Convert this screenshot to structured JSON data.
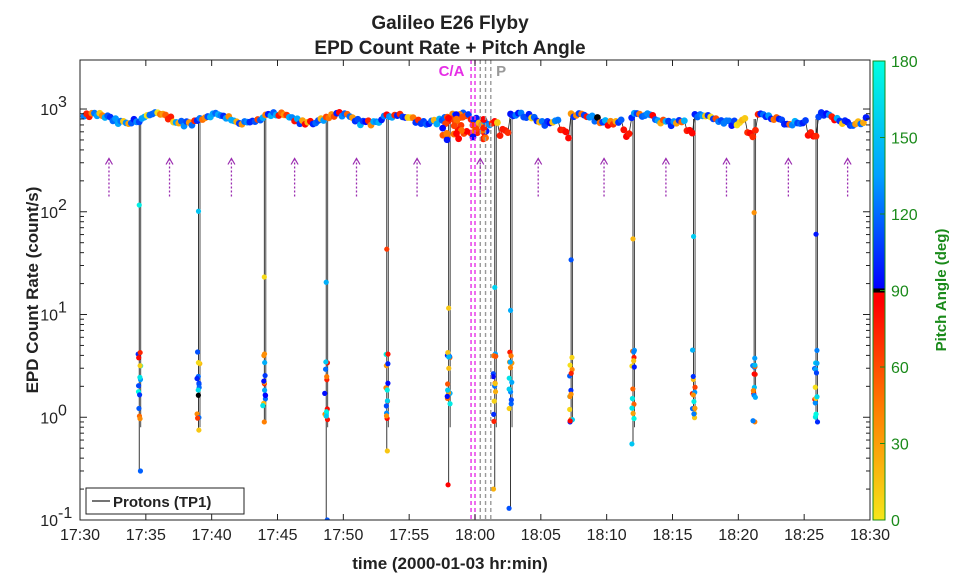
{
  "chart_data": {
    "type": "scatter",
    "title": "Galileo E26 Flyby",
    "subtitle": "EPD Count Rate + Pitch Angle",
    "xlabel": "time (2000-01-03 hr:min)",
    "ylabel": "EPD Count Rate (count/s)",
    "y_scale": "log",
    "ylim": [
      0.1,
      3000
    ],
    "xlim": [
      "17:30",
      "18:30"
    ],
    "x_ticks": [
      "17:30",
      "17:35",
      "17:40",
      "17:45",
      "17:50",
      "17:55",
      "18:00",
      "18:05",
      "18:10",
      "18:15",
      "18:20",
      "18:25",
      "18:30"
    ],
    "y_ticks": [
      {
        "value": 0.1,
        "base": "10",
        "exp": "-1"
      },
      {
        "value": 1,
        "base": "10",
        "exp": "0"
      },
      {
        "value": 10,
        "base": "10",
        "exp": "1"
      },
      {
        "value": 100,
        "base": "10",
        "exp": "2"
      },
      {
        "value": 1000,
        "base": "10",
        "exp": "3"
      }
    ],
    "colorbar": {
      "label": "Pitch Angle (deg)",
      "range": [
        0,
        180
      ],
      "ticks": [
        "0",
        "30",
        "60",
        "90",
        "120",
        "150",
        "180"
      ],
      "colors": {
        "0": "#f5e61a",
        "45": "#ff7a00",
        "85": "#ff0000",
        "90": "#000000",
        "95": "#0000ff",
        "135": "#00a0ff",
        "180": "#00ffe0"
      }
    },
    "legend": {
      "entries": [
        "Protons (TP1)"
      ],
      "location": "bottom-left"
    },
    "annotations": [
      {
        "text": "C/A",
        "x": "17:59.7",
        "color": "#e62ee6"
      },
      {
        "text": "P",
        "x": "18:00.5",
        "color": "#999999"
      }
    ],
    "spin_dips": [
      {
        "t": 34.5,
        "min": 0.3
      },
      {
        "t": 39.0,
        "min": 0.75
      },
      {
        "t": 44.0,
        "min": 0.9
      },
      {
        "t": 48.7,
        "min": 0.1
      },
      {
        "t": 53.3,
        "min": 0.47
      },
      {
        "t": 58.0,
        "min": 0.22
      },
      {
        "t": 61.5,
        "min": 0.2
      },
      {
        "t": 62.7,
        "min": 0.13
      },
      {
        "t": 67.3,
        "min": 0.9
      },
      {
        "t": 72.0,
        "min": 0.55
      },
      {
        "t": 76.6,
        "min": 1.2
      },
      {
        "t": 81.2,
        "min": 1.7
      },
      {
        "t": 85.9,
        "min": 0.9
      }
    ],
    "periodic_minima_markers": [
      32.2,
      36.8,
      41.5,
      46.3,
      51.0,
      55.6,
      60.4,
      64.8,
      69.8,
      74.5,
      79.1,
      83.8,
      88.3
    ],
    "baseline_range": [
      700,
      950
    ]
  }
}
